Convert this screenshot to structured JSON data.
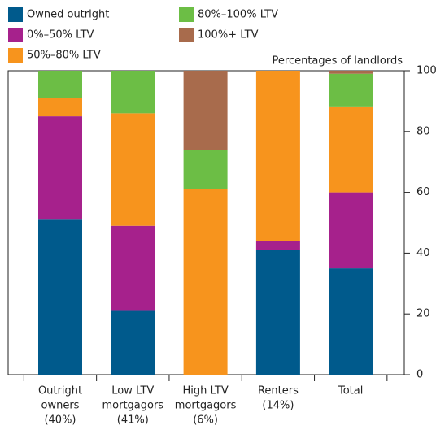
{
  "chart_data": {
    "type": "stacked-bar",
    "y_axis_label": "Percentages of landlords",
    "categories": [
      [
        "Outright",
        "owners",
        "(40%)"
      ],
      [
        "Low LTV",
        "mortgagors",
        "(41%)"
      ],
      [
        "High LTV",
        "mortgagors",
        "(6%)"
      ],
      [
        "Renters",
        "(14%)"
      ],
      [
        "Total"
      ]
    ],
    "series": [
      {
        "name": "Owned outright",
        "color": "#005a8c",
        "values": [
          51,
          21,
          0,
          41,
          35
        ]
      },
      {
        "name": "0%–50% LTV",
        "color": "#a6218c",
        "values": [
          34,
          28,
          0,
          3,
          25
        ]
      },
      {
        "name": "50%–80% LTV",
        "color": "#f7941d",
        "values": [
          6,
          37,
          61,
          56,
          28
        ]
      },
      {
        "name": "80%–100% LTV",
        "color": "#6cbe45",
        "values": [
          9,
          14,
          13,
          0,
          11
        ]
      },
      {
        "name": "100%+ LTV",
        "color": "#a86b4c",
        "values": [
          0,
          0,
          26,
          0,
          1
        ]
      }
    ],
    "ylim": [
      0,
      100
    ],
    "yticks": [
      0,
      20,
      40,
      60,
      80,
      100
    ],
    "y_axis_side": "right"
  }
}
